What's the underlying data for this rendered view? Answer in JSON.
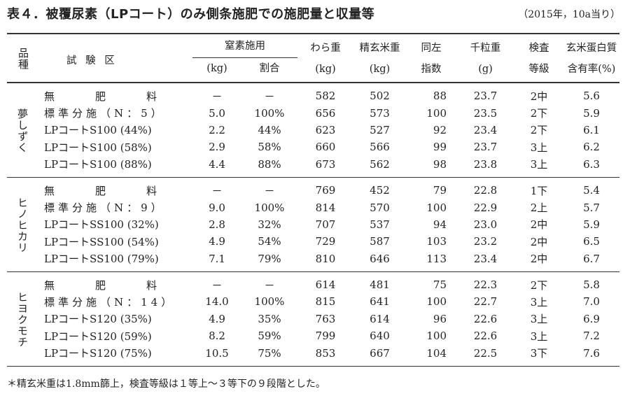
{
  "title": "表４．被覆尿素（LPコート）のみ側条施肥での施肥量と収量等",
  "note": "（2015年，10a当り）",
  "headers": {
    "variety": "品種",
    "treatment": "試 験 区",
    "nitrogen": "窒素施用",
    "nitrogen_kg": "(kg)",
    "nitrogen_ratio": "割合",
    "straw": "わら重",
    "straw_unit": "(kg)",
    "rice": "精玄米重",
    "rice_unit": "(kg)",
    "index1": "同左",
    "index2": "指数",
    "grain": "千粒重",
    "grain_unit": "(g)",
    "grade1": "検査",
    "grade2": "等級",
    "protein1": "玄米蛋白質",
    "protein2": "含有率(%)"
  },
  "groups": [
    {
      "variety": "夢しずく",
      "rows": [
        [
          "無肥料",
          "－",
          "－",
          "582",
          "502",
          "88",
          "23.7",
          "2中",
          "5.6"
        ],
        [
          "標準分施（N：5）",
          "5.0",
          "100%",
          "656",
          "573",
          "100",
          "23.5",
          "2下",
          "5.9"
        ],
        [
          "LPコートS100 (44%)",
          "2.2",
          "44%",
          "623",
          "527",
          "92",
          "23.4",
          "2下",
          "6.1"
        ],
        [
          "LPコートS100 (58%)",
          "2.9",
          "58%",
          "660",
          "566",
          "99",
          "23.7",
          "3上",
          "6.2"
        ],
        [
          "LPコートS100 (88%)",
          "4.4",
          "88%",
          "673",
          "562",
          "98",
          "23.8",
          "3上",
          "6.3"
        ]
      ]
    },
    {
      "variety": "ヒノヒカリ",
      "rows": [
        [
          "無肥料",
          "－",
          "－",
          "769",
          "452",
          "79",
          "22.8",
          "1下",
          "5.4"
        ],
        [
          "標準分施（N：9）",
          "9.0",
          "100%",
          "814",
          "570",
          "100",
          "22.9",
          "2上",
          "5.7"
        ],
        [
          "LPコートSS100 (32%)",
          "2.8",
          "32%",
          "707",
          "537",
          "94",
          "23.0",
          "2中",
          "5.9"
        ],
        [
          "LPコートSS100 (54%)",
          "4.9",
          "54%",
          "729",
          "587",
          "103",
          "23.2",
          "2中",
          "6.5"
        ],
        [
          "LPコートSS100 (79%)",
          "7.1",
          "79%",
          "810",
          "646",
          "113",
          "23.4",
          "2中",
          "6.7"
        ]
      ]
    },
    {
      "variety": "ヒヨクモチ",
      "rows": [
        [
          "無肥料",
          "－",
          "－",
          "614",
          "481",
          "75",
          "22.3",
          "2下",
          "5.8"
        ],
        [
          "標準分施（N：14）",
          "14.0",
          "100%",
          "815",
          "641",
          "100",
          "22.7",
          "3上",
          "7.0"
        ],
        [
          "LPコートS120 (35%)",
          "4.9",
          "35%",
          "763",
          "614",
          "96",
          "22.6",
          "3上",
          "6.9"
        ],
        [
          "LPコートS120 (59%)",
          "8.2",
          "59%",
          "799",
          "640",
          "100",
          "22.6",
          "3上",
          "7.2"
        ],
        [
          "LPコートS120 (75%)",
          "10.5",
          "75%",
          "853",
          "667",
          "104",
          "22.5",
          "3下",
          "7.6"
        ]
      ]
    }
  ],
  "footnote": "＊精玄米重は1.8mm篩上，検査等級は１等上～３等下の９段階とした。"
}
